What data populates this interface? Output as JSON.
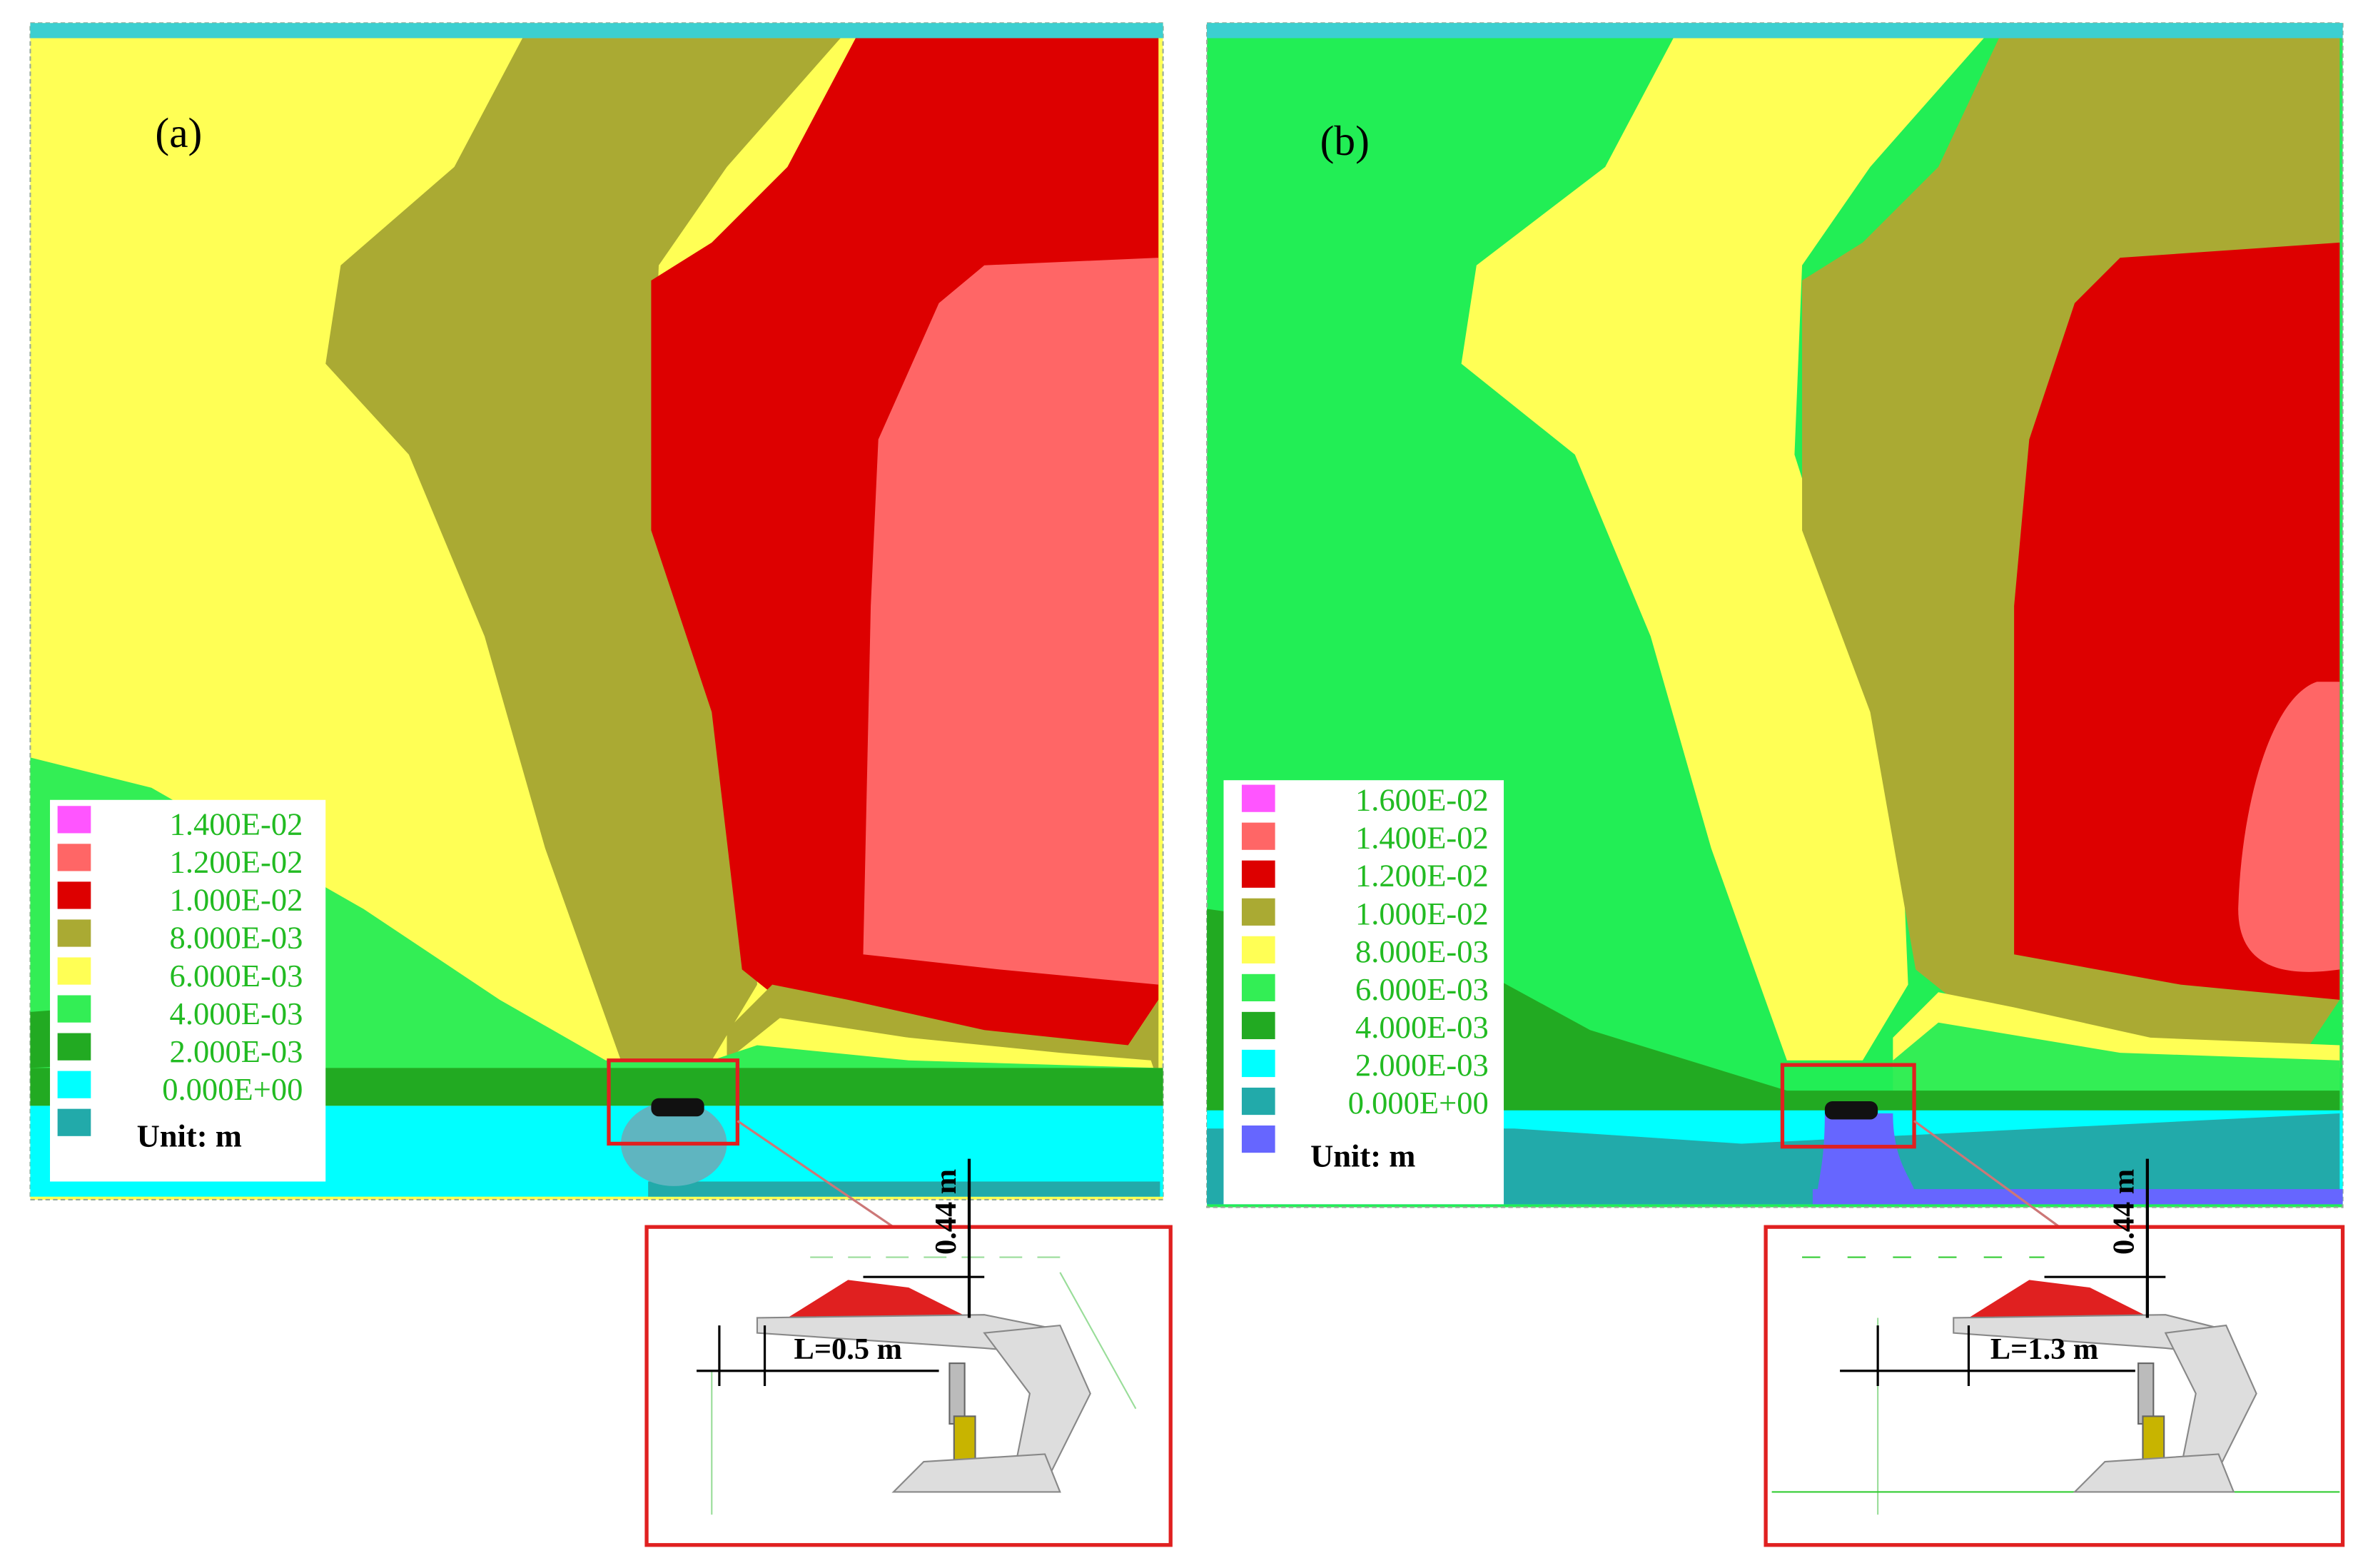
{
  "panels": [
    {
      "label": "(a)",
      "legend": [
        "1.400E-02",
        "1.200E-02",
        "1.000E-02",
        "8.000E-03",
        "6.000E-03",
        "4.000E-03",
        "2.000E-03",
        "0.000E+00"
      ],
      "unit": "Unit: m",
      "inset": {
        "height": "0.44 m",
        "length": "L=0.5 m"
      }
    },
    {
      "label": "(b)",
      "legend": [
        "1.600E-02",
        "1.400E-02",
        "1.200E-02",
        "1.000E-02",
        "8.000E-03",
        "6.000E-03",
        "4.000E-03",
        "2.000E-03",
        "0.000E+00"
      ],
      "unit": "Unit: m",
      "inset": {
        "height": "0.44 m",
        "length": "L=1.3 m"
      }
    }
  ]
}
